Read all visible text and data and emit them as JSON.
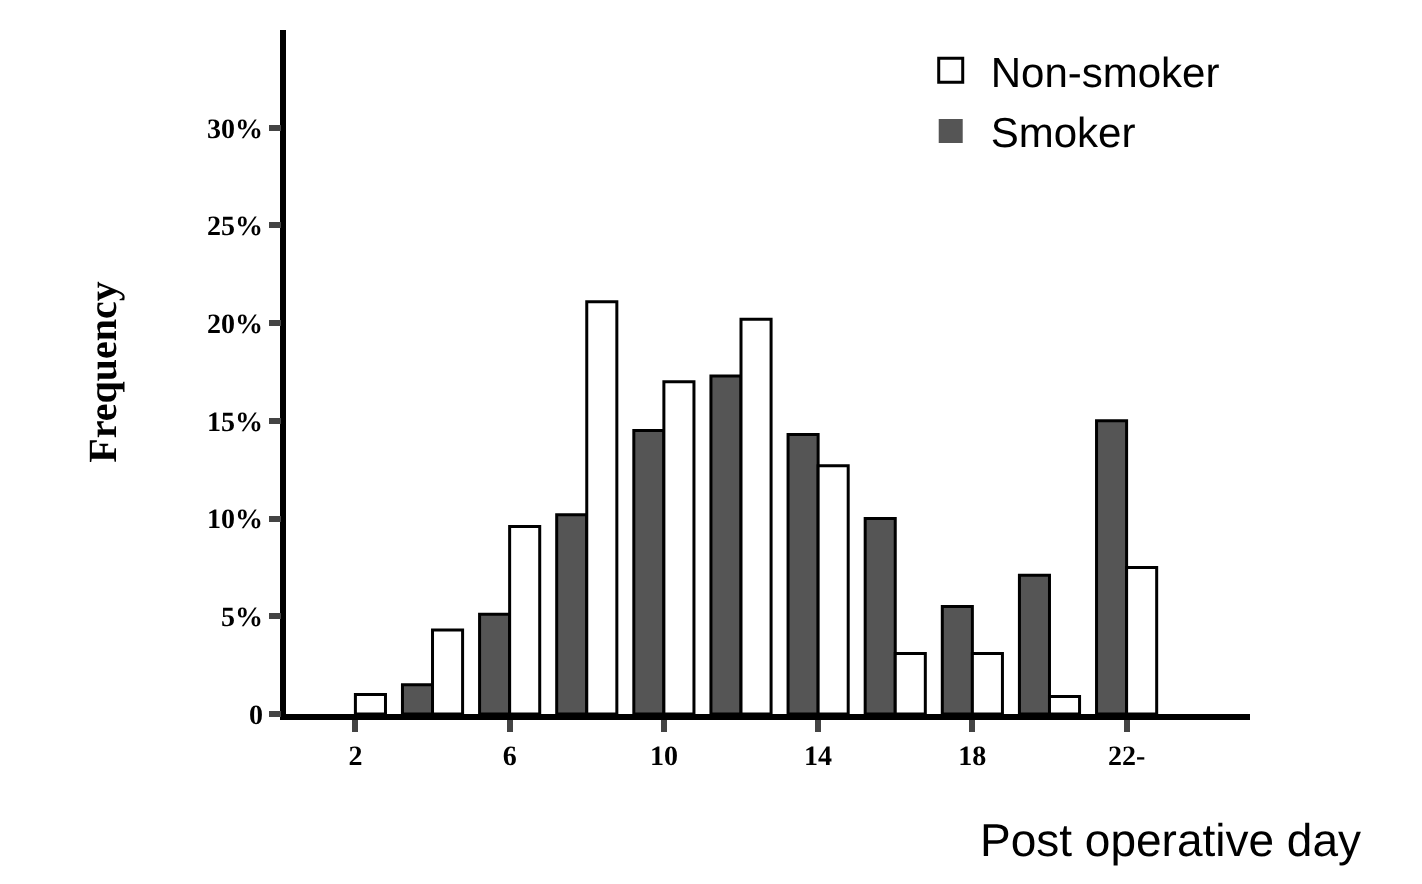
{
  "chart_data": {
    "type": "bar",
    "xlabel": "Post operative day",
    "ylabel": "Frequency",
    "categories": [
      "2",
      null,
      "6",
      null,
      "10",
      null,
      "14",
      null,
      "18",
      null,
      "22-"
    ],
    "series": [
      {
        "name": "Smoker",
        "color": "#555555",
        "values": [
          0,
          1.5,
          5.1,
          10.2,
          14.5,
          17.3,
          14.3,
          10.0,
          5.5,
          7.1,
          15.0
        ]
      },
      {
        "name": "Non-smoker",
        "color": "#ffffff",
        "values": [
          1.0,
          4.3,
          9.6,
          21.1,
          17.0,
          20.2,
          12.7,
          3.1,
          3.1,
          0.9,
          7.5
        ]
      }
    ],
    "ylim": [
      0,
      35
    ],
    "yticks": [
      0,
      {
        "value": 5,
        "label": "5%"
      },
      {
        "value": 10,
        "label": "10%"
      },
      {
        "value": 15,
        "label": "15%"
      },
      {
        "value": 20,
        "label": "20%"
      },
      {
        "value": 25,
        "label": "25%"
      },
      {
        "value": 30,
        "label": "30%"
      }
    ],
    "legend": "top right"
  }
}
